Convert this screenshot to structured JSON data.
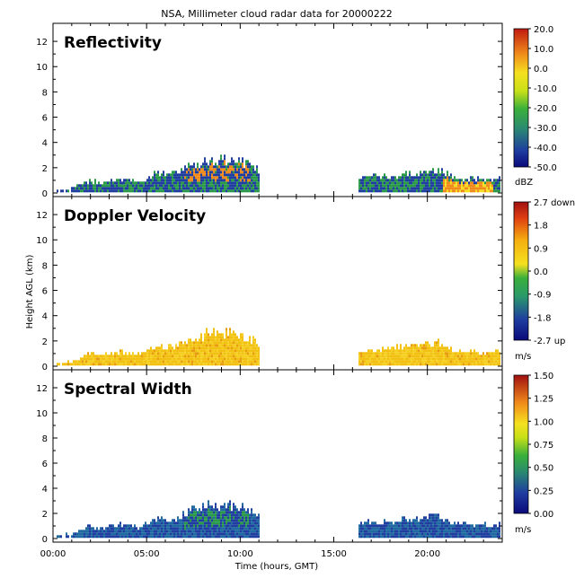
{
  "chart_data": {
    "type": "heatmap",
    "title": "NSA, Millimeter cloud radar data for 20000222",
    "xlabel": "Time (hours, GMT)",
    "ylabel": "Height AGL (km)",
    "x_range": [
      0,
      24
    ],
    "x_tick_labels": [
      "00:00",
      "05:00",
      "10:00",
      "15:00",
      "20:00"
    ],
    "x_tick_values": [
      0,
      5,
      10,
      15,
      20
    ],
    "y_range": [
      0,
      13
    ],
    "y_tick_labels": [
      "0",
      "2",
      "4",
      "6",
      "8",
      "10",
      "12"
    ],
    "y_tick_values": [
      0,
      2,
      4,
      6,
      8,
      10,
      12
    ],
    "panels": [
      {
        "name": "Reflectivity",
        "unit": "dBZ",
        "colorbar_labels": [
          "20.0",
          "10.0",
          "0.0",
          "-10.0",
          "-20.0",
          "-30.0",
          "-40.0",
          "-50.0"
        ],
        "colorbar_values": [
          20,
          10,
          0,
          -10,
          -20,
          -30,
          -40,
          -50
        ],
        "cloud_top_profile": {
          "time_hours": [
            0.0,
            1.0,
            1.8,
            2.5,
            3.5,
            4.5,
            5.5,
            6.5,
            7.2,
            8.0,
            9.0,
            10.0,
            10.8,
            16.5,
            17.5,
            18.5,
            19.5,
            20.5,
            21.5,
            22.5,
            23.4,
            23.9
          ],
          "top_km": [
            0.2,
            0.3,
            0.9,
            0.8,
            1.1,
            0.9,
            1.5,
            1.6,
            2.2,
            2.6,
            2.7,
            2.6,
            1.9,
            1.2,
            1.3,
            1.5,
            1.6,
            1.9,
            1.2,
            1.1,
            1.0,
            1.3
          ]
        },
        "colors": {
          "low": "#1f3ea0",
          "mid": "#2a9a4a",
          "high": "#f08a1a"
        }
      },
      {
        "name": "Doppler Velocity",
        "unit": "m/s",
        "colorbar_labels": [
          "2.7 down",
          "1.8",
          "0.9",
          "0.0",
          "-0.9",
          "-1.8",
          "-2.7 up"
        ],
        "colorbar_values": [
          2.7,
          1.8,
          0.9,
          0.0,
          -0.9,
          -1.8,
          -2.7
        ],
        "cloud_top_profile": {
          "time_hours": [
            0.0,
            1.0,
            1.8,
            2.5,
            3.5,
            4.5,
            5.5,
            6.5,
            7.2,
            8.0,
            9.0,
            10.0,
            10.8,
            16.5,
            17.5,
            18.5,
            19.5,
            20.5,
            21.5,
            22.5,
            23.4,
            23.9
          ],
          "top_km": [
            0.2,
            0.3,
            0.9,
            0.8,
            1.1,
            0.9,
            1.5,
            1.6,
            2.2,
            2.6,
            2.7,
            2.6,
            1.9,
            1.2,
            1.3,
            1.5,
            1.6,
            1.9,
            1.2,
            1.1,
            1.0,
            1.3
          ]
        },
        "colors": {
          "low": "#f2c010",
          "mid": "#f5d020",
          "high": "#e89a10"
        }
      },
      {
        "name": "Spectral Width",
        "unit": "m/s",
        "colorbar_labels": [
          "1.50",
          "1.25",
          "1.00",
          "0.75",
          "0.50",
          "0.25",
          "0.00"
        ],
        "colorbar_values": [
          1.5,
          1.25,
          1.0,
          0.75,
          0.5,
          0.25,
          0.0
        ],
        "cloud_top_profile": {
          "time_hours": [
            0.0,
            1.0,
            1.8,
            2.5,
            3.5,
            4.5,
            5.5,
            6.5,
            7.2,
            8.0,
            9.0,
            10.0,
            10.8,
            16.5,
            17.5,
            18.5,
            19.5,
            20.5,
            21.5,
            22.5,
            23.4,
            23.9
          ],
          "top_km": [
            0.2,
            0.3,
            0.9,
            0.8,
            1.1,
            0.9,
            1.5,
            1.6,
            2.2,
            2.6,
            2.7,
            2.6,
            1.9,
            1.2,
            1.3,
            1.5,
            1.6,
            1.9,
            1.2,
            1.1,
            1.0,
            1.3
          ]
        },
        "colors": {
          "low": "#1f3ea0",
          "mid": "#1f6aa0",
          "high": "#2a9a4a"
        }
      }
    ],
    "grid": false,
    "legend": "colorbars-right"
  }
}
